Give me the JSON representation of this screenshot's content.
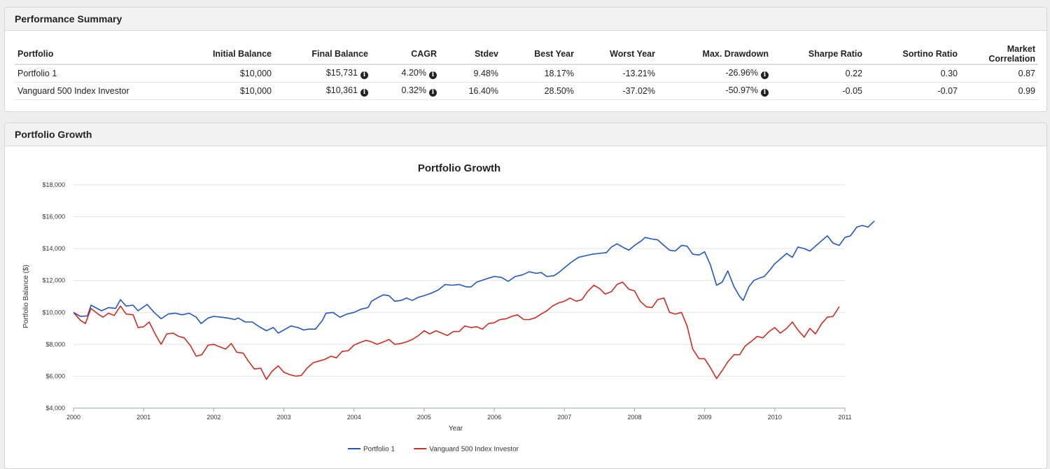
{
  "summary": {
    "title": "Performance Summary",
    "columns": [
      "Portfolio",
      "Initial Balance",
      "Final Balance",
      "CAGR",
      "Stdev",
      "Best Year",
      "Worst Year",
      "Max. Drawdown",
      "Sharpe Ratio",
      "Sortino Ratio",
      "Market Correlation"
    ],
    "rows": [
      {
        "portfolio": "Portfolio 1",
        "initial": "$10,000",
        "final": "$15,731",
        "cagr": "4.20%",
        "stdev": "9.48%",
        "best": "18.17%",
        "worst": "-13.21%",
        "drawdown": "-26.96%",
        "sharpe": "0.22",
        "sortino": "0.30",
        "correlation": "0.87"
      },
      {
        "portfolio": "Vanguard 500 Index Investor",
        "initial": "$10,000",
        "final": "$10,361",
        "cagr": "0.32%",
        "stdev": "16.40%",
        "best": "28.50%",
        "worst": "-37.02%",
        "drawdown": "-50.97%",
        "sharpe": "-0.05",
        "sortino": "-0.07",
        "correlation": "0.99"
      }
    ],
    "info_icon": "info-circle-icon"
  },
  "growth": {
    "title": "Portfolio Growth"
  },
  "chart_data": {
    "type": "line",
    "title": "Portfolio Growth",
    "xlabel": "Year",
    "ylabel": "Portfolio Balance ($)",
    "xlim": [
      2000,
      2011
    ],
    "ylim": [
      4000,
      18000
    ],
    "x_ticks": [
      "2000",
      "2001",
      "2002",
      "2003",
      "2004",
      "2005",
      "2006",
      "2007",
      "2008",
      "2009",
      "2010",
      "2011"
    ],
    "y_ticks": [
      "$4,000",
      "$6,000",
      "$8,000",
      "$10,000",
      "$12,000",
      "$14,000",
      "$16,000",
      "$18,000"
    ],
    "y_tick_values": [
      4000,
      6000,
      8000,
      10000,
      12000,
      14000,
      16000,
      18000
    ],
    "grid": true,
    "legend": "bottom",
    "series": [
      {
        "name": "Portfolio 1",
        "color": "#2255c4",
        "points": [
          [
            2000.0,
            10000
          ],
          [
            2000.1,
            9750
          ],
          [
            2000.2,
            9780
          ],
          [
            2000.25,
            10450
          ],
          [
            2000.4,
            10100
          ],
          [
            2000.5,
            10300
          ],
          [
            2000.6,
            10250
          ],
          [
            2000.67,
            10800
          ],
          [
            2000.75,
            10400
          ],
          [
            2000.85,
            10450
          ],
          [
            2000.92,
            10100
          ],
          [
            2001.05,
            10500
          ],
          [
            2001.15,
            10000
          ],
          [
            2001.25,
            9600
          ],
          [
            2001.35,
            9900
          ],
          [
            2001.45,
            9950
          ],
          [
            2001.55,
            9850
          ],
          [
            2001.65,
            9950
          ],
          [
            2001.75,
            9700
          ],
          [
            2001.82,
            9300
          ],
          [
            2001.92,
            9650
          ],
          [
            2002.0,
            9750
          ],
          [
            2002.1,
            9700
          ],
          [
            2002.2,
            9650
          ],
          [
            2002.3,
            9550
          ],
          [
            2002.35,
            9650
          ],
          [
            2002.45,
            9400
          ],
          [
            2002.55,
            9400
          ],
          [
            2002.65,
            9100
          ],
          [
            2002.75,
            8850
          ],
          [
            2002.85,
            9050
          ],
          [
            2002.92,
            8700
          ],
          [
            2003.0,
            8900
          ],
          [
            2003.1,
            9150
          ],
          [
            2003.2,
            9050
          ],
          [
            2003.28,
            8900
          ],
          [
            2003.35,
            8950
          ],
          [
            2003.45,
            8950
          ],
          [
            2003.55,
            9500
          ],
          [
            2003.6,
            9950
          ],
          [
            2003.7,
            10000
          ],
          [
            2003.8,
            9700
          ],
          [
            2003.9,
            9900
          ],
          [
            2004.0,
            10000
          ],
          [
            2004.1,
            10200
          ],
          [
            2004.2,
            10300
          ],
          [
            2004.25,
            10700
          ],
          [
            2004.35,
            10950
          ],
          [
            2004.42,
            11100
          ],
          [
            2004.5,
            11050
          ],
          [
            2004.58,
            10700
          ],
          [
            2004.67,
            10750
          ],
          [
            2004.75,
            10900
          ],
          [
            2004.83,
            10750
          ],
          [
            2004.92,
            10950
          ],
          [
            2005.0,
            11050
          ],
          [
            2005.1,
            11200
          ],
          [
            2005.2,
            11400
          ],
          [
            2005.3,
            11750
          ],
          [
            2005.4,
            11700
          ],
          [
            2005.5,
            11750
          ],
          [
            2005.6,
            11600
          ],
          [
            2005.67,
            11600
          ],
          [
            2005.75,
            11900
          ],
          [
            2005.85,
            12050
          ],
          [
            2005.92,
            12150
          ],
          [
            2006.0,
            12250
          ],
          [
            2006.1,
            12200
          ],
          [
            2006.2,
            11950
          ],
          [
            2006.3,
            12250
          ],
          [
            2006.4,
            12350
          ],
          [
            2006.5,
            12550
          ],
          [
            2006.6,
            12450
          ],
          [
            2006.67,
            12500
          ],
          [
            2006.75,
            12250
          ],
          [
            2006.85,
            12300
          ],
          [
            2006.92,
            12500
          ],
          [
            2007.0,
            12800
          ],
          [
            2007.1,
            13150
          ],
          [
            2007.2,
            13450
          ],
          [
            2007.3,
            13550
          ],
          [
            2007.4,
            13650
          ],
          [
            2007.5,
            13700
          ],
          [
            2007.6,
            13750
          ],
          [
            2007.67,
            14100
          ],
          [
            2007.75,
            14300
          ],
          [
            2007.85,
            14050
          ],
          [
            2007.92,
            13900
          ],
          [
            2008.0,
            14200
          ],
          [
            2008.1,
            14500
          ],
          [
            2008.15,
            14700
          ],
          [
            2008.25,
            14600
          ],
          [
            2008.33,
            14550
          ],
          [
            2008.42,
            14200
          ],
          [
            2008.5,
            13900
          ],
          [
            2008.58,
            13850
          ],
          [
            2008.67,
            14200
          ],
          [
            2008.75,
            14150
          ],
          [
            2008.83,
            13650
          ],
          [
            2008.92,
            13600
          ],
          [
            2009.0,
            13800
          ],
          [
            2009.08,
            13000
          ],
          [
            2009.17,
            11700
          ],
          [
            2009.25,
            11900
          ],
          [
            2009.33,
            12600
          ],
          [
            2009.42,
            11600
          ],
          [
            2009.5,
            11000
          ],
          [
            2009.55,
            10750
          ],
          [
            2009.63,
            11600
          ],
          [
            2009.7,
            12000
          ],
          [
            2009.78,
            12150
          ],
          [
            2009.85,
            12250
          ],
          [
            2009.92,
            12600
          ],
          [
            2010.0,
            13050
          ],
          [
            2010.08,
            13350
          ],
          [
            2010.17,
            13700
          ],
          [
            2010.25,
            13450
          ],
          [
            2010.33,
            14100
          ],
          [
            2010.42,
            14000
          ],
          [
            2010.5,
            13850
          ],
          [
            2010.58,
            14150
          ],
          [
            2010.67,
            14500
          ],
          [
            2010.75,
            14800
          ],
          [
            2010.83,
            14350
          ],
          [
            2010.92,
            14200
          ],
          [
            2011.0,
            14700
          ],
          [
            2011.08,
            14800
          ],
          [
            2011.17,
            15350
          ],
          [
            2011.25,
            15450
          ],
          [
            2011.33,
            15350
          ],
          [
            2011.42,
            15731
          ]
        ]
      },
      {
        "name": "Vanguard 500 Index Investor",
        "color": "#d42a1f",
        "points": [
          [
            2000.0,
            10000
          ],
          [
            2000.1,
            9500
          ],
          [
            2000.17,
            9300
          ],
          [
            2000.25,
            10250
          ],
          [
            2000.35,
            9900
          ],
          [
            2000.42,
            9700
          ],
          [
            2000.5,
            9950
          ],
          [
            2000.58,
            9800
          ],
          [
            2000.67,
            10400
          ],
          [
            2000.75,
            9900
          ],
          [
            2000.85,
            9850
          ],
          [
            2000.92,
            9050
          ],
          [
            2001.0,
            9100
          ],
          [
            2001.08,
            9400
          ],
          [
            2001.17,
            8600
          ],
          [
            2001.25,
            8000
          ],
          [
            2001.33,
            8650
          ],
          [
            2001.42,
            8700
          ],
          [
            2001.5,
            8500
          ],
          [
            2001.58,
            8400
          ],
          [
            2001.67,
            7900
          ],
          [
            2001.75,
            7250
          ],
          [
            2001.83,
            7350
          ],
          [
            2001.92,
            7950
          ],
          [
            2002.0,
            8000
          ],
          [
            2002.08,
            7850
          ],
          [
            2002.17,
            7700
          ],
          [
            2002.25,
            8050
          ],
          [
            2002.33,
            7500
          ],
          [
            2002.42,
            7450
          ],
          [
            2002.5,
            6900
          ],
          [
            2002.58,
            6450
          ],
          [
            2002.67,
            6500
          ],
          [
            2002.75,
            5800
          ],
          [
            2002.83,
            6300
          ],
          [
            2002.92,
            6650
          ],
          [
            2003.0,
            6250
          ],
          [
            2003.08,
            6100
          ],
          [
            2003.17,
            6000
          ],
          [
            2003.25,
            6050
          ],
          [
            2003.33,
            6500
          ],
          [
            2003.42,
            6850
          ],
          [
            2003.5,
            6950
          ],
          [
            2003.58,
            7050
          ],
          [
            2003.67,
            7250
          ],
          [
            2003.75,
            7150
          ],
          [
            2003.83,
            7550
          ],
          [
            2003.92,
            7600
          ],
          [
            2004.0,
            7950
          ],
          [
            2004.08,
            8100
          ],
          [
            2004.17,
            8250
          ],
          [
            2004.25,
            8150
          ],
          [
            2004.33,
            8000
          ],
          [
            2004.42,
            8150
          ],
          [
            2004.5,
            8300
          ],
          [
            2004.58,
            8000
          ],
          [
            2004.67,
            8050
          ],
          [
            2004.75,
            8150
          ],
          [
            2004.83,
            8300
          ],
          [
            2004.92,
            8550
          ],
          [
            2005.0,
            8850
          ],
          [
            2005.08,
            8650
          ],
          [
            2005.17,
            8850
          ],
          [
            2005.25,
            8700
          ],
          [
            2005.33,
            8550
          ],
          [
            2005.42,
            8800
          ],
          [
            2005.5,
            8800
          ],
          [
            2005.58,
            9150
          ],
          [
            2005.67,
            9050
          ],
          [
            2005.75,
            9100
          ],
          [
            2005.83,
            8950
          ],
          [
            2005.92,
            9300
          ],
          [
            2006.0,
            9350
          ],
          [
            2006.08,
            9550
          ],
          [
            2006.17,
            9600
          ],
          [
            2006.25,
            9750
          ],
          [
            2006.33,
            9850
          ],
          [
            2006.42,
            9550
          ],
          [
            2006.5,
            9550
          ],
          [
            2006.58,
            9650
          ],
          [
            2006.67,
            9900
          ],
          [
            2006.75,
            10100
          ],
          [
            2006.83,
            10400
          ],
          [
            2006.92,
            10600
          ],
          [
            2007.0,
            10700
          ],
          [
            2007.08,
            10900
          ],
          [
            2007.17,
            10700
          ],
          [
            2007.25,
            10800
          ],
          [
            2007.33,
            11300
          ],
          [
            2007.42,
            11700
          ],
          [
            2007.5,
            11500
          ],
          [
            2007.58,
            11150
          ],
          [
            2007.67,
            11300
          ],
          [
            2007.75,
            11750
          ],
          [
            2007.83,
            11900
          ],
          [
            2007.92,
            11450
          ],
          [
            2008.0,
            11350
          ],
          [
            2008.08,
            10700
          ],
          [
            2008.17,
            10350
          ],
          [
            2008.25,
            10300
          ],
          [
            2008.33,
            10800
          ],
          [
            2008.42,
            10900
          ],
          [
            2008.5,
            10000
          ],
          [
            2008.58,
            9900
          ],
          [
            2008.67,
            10000
          ],
          [
            2008.75,
            9150
          ],
          [
            2008.83,
            7700
          ],
          [
            2008.92,
            7100
          ],
          [
            2009.0,
            7100
          ],
          [
            2009.08,
            6550
          ],
          [
            2009.17,
            5850
          ],
          [
            2009.25,
            6350
          ],
          [
            2009.33,
            6900
          ],
          [
            2009.42,
            7350
          ],
          [
            2009.5,
            7350
          ],
          [
            2009.58,
            7900
          ],
          [
            2009.67,
            8200
          ],
          [
            2009.75,
            8500
          ],
          [
            2009.83,
            8400
          ],
          [
            2009.92,
            8800
          ],
          [
            2010.0,
            9050
          ],
          [
            2010.08,
            8700
          ],
          [
            2010.17,
            9000
          ],
          [
            2010.25,
            9400
          ],
          [
            2010.33,
            8900
          ],
          [
            2010.42,
            8450
          ],
          [
            2010.5,
            9000
          ],
          [
            2010.58,
            8650
          ],
          [
            2010.67,
            9300
          ],
          [
            2010.75,
            9700
          ],
          [
            2010.83,
            9750
          ],
          [
            2010.92,
            10361
          ]
        ]
      }
    ]
  }
}
